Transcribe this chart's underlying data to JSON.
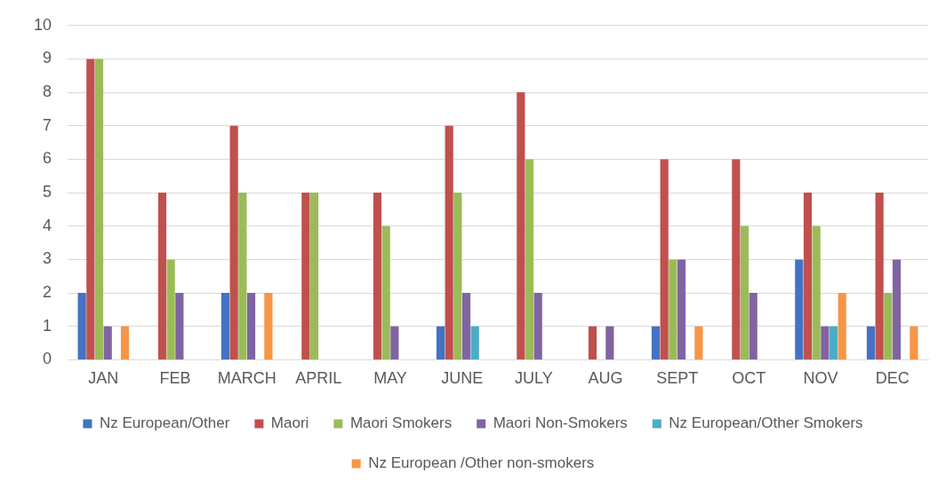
{
  "chart_data": {
    "type": "bar",
    "categories": [
      "JAN",
      "FEB",
      "MARCH",
      "APRIL",
      "MAY",
      "JUNE",
      "JULY",
      "AUG",
      "SEPT",
      "OCT",
      "NOV",
      "DEC"
    ],
    "series": [
      {
        "name": "Nz European/Other",
        "color": "#4472c4",
        "values": [
          2,
          0,
          2,
          0,
          0,
          1,
          0,
          0,
          1,
          0,
          3,
          1
        ]
      },
      {
        "name": "Maori",
        "color": "#c0504d",
        "values": [
          9,
          5,
          7,
          5,
          5,
          7,
          8,
          1,
          6,
          6,
          5,
          5
        ]
      },
      {
        "name": "Maori Smokers",
        "color": "#9bbb59",
        "values": [
          9,
          3,
          5,
          5,
          4,
          5,
          6,
          0,
          3,
          4,
          4,
          2
        ]
      },
      {
        "name": "Maori Non-Smokers",
        "color": "#8064a2",
        "values": [
          1,
          2,
          2,
          0,
          1,
          2,
          2,
          1,
          3,
          2,
          1,
          3
        ]
      },
      {
        "name": "Nz European/Other Smokers",
        "color": "#4bacc6",
        "values": [
          0,
          0,
          0,
          0,
          0,
          1,
          0,
          0,
          0,
          0,
          1,
          0
        ]
      },
      {
        "name": "Nz European /Other non-smokers",
        "color": "#f79646",
        "values": [
          1,
          0,
          2,
          0,
          0,
          0,
          0,
          0,
          1,
          0,
          2,
          1
        ]
      }
    ],
    "ylim": [
      0,
      10
    ],
    "yticks": [
      0,
      1,
      2,
      3,
      4,
      5,
      6,
      7,
      8,
      9,
      10
    ],
    "grid": "y",
    "legend": "bottom"
  }
}
